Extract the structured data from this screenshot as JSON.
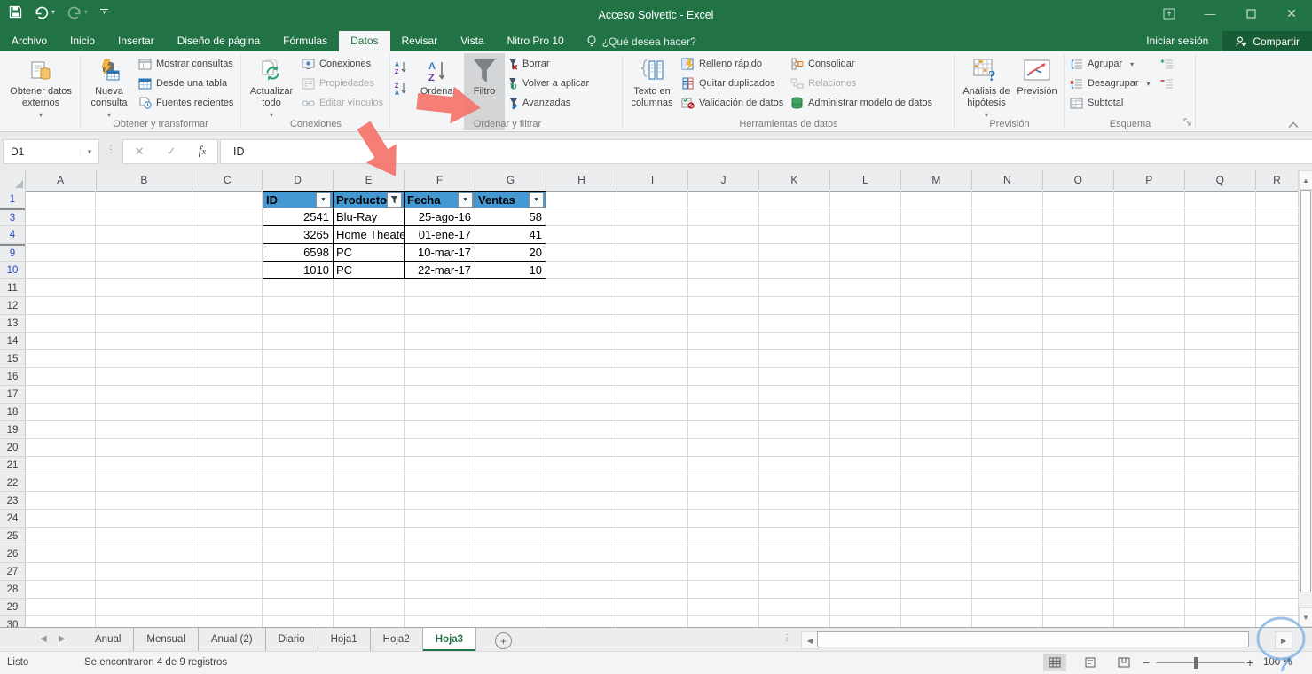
{
  "colors": {
    "brand_green": "#217346",
    "table_header_blue": "#4599D2",
    "arrow_red": "#F4736B",
    "filtered_row_number_blue": "#2B48C8"
  },
  "titlebar": {
    "title": "Acceso Solvetic - Excel"
  },
  "menubar": {
    "tabs": [
      {
        "label": "Archivo"
      },
      {
        "label": "Inicio"
      },
      {
        "label": "Insertar"
      },
      {
        "label": "Diseño de página"
      },
      {
        "label": "Fórmulas"
      },
      {
        "label": "Datos",
        "active": true
      },
      {
        "label": "Revisar"
      },
      {
        "label": "Vista"
      },
      {
        "label": "Nitro Pro 10"
      }
    ],
    "tellme": "¿Qué desea hacer?",
    "signin": "Iniciar sesión",
    "share": "Compartir"
  },
  "ribbon": {
    "get_external": "Obtener datos externos",
    "new_query": "Nueva consulta",
    "show_queries": "Mostrar consultas",
    "from_table": "Desde una tabla",
    "recent_sources": "Fuentes recientes",
    "group_get_transform": "Obtener y transformar",
    "refresh_all": "Actualizar todo",
    "connections": "Conexiones",
    "properties": "Propiedades",
    "edit_links": "Editar vínculos",
    "group_connections": "Conexiones",
    "sort": "Ordenar",
    "filter": "Filtro",
    "clear": "Borrar",
    "reapply": "Volver a aplicar",
    "advanced": "Avanzadas",
    "group_sort_filter": "Ordenar y filtrar",
    "text_to_columns": "Texto en columnas",
    "flash_fill": "Relleno rápido",
    "remove_duplicates": "Quitar duplicados",
    "data_validation": "Validación de datos",
    "consolidate": "Consolidar",
    "relationships": "Relaciones",
    "manage_data_model": "Administrar modelo de datos",
    "group_data_tools": "Herramientas de datos",
    "what_if": "Análisis de hipótesis",
    "forecast_sheet": "Previsión",
    "group_forecast": "Previsión",
    "outline_group": "Agrupar",
    "outline_ungroup": "Desagrupar",
    "outline_subtotal": "Subtotal",
    "group_outline": "Esquema"
  },
  "formula_bar": {
    "name_box": "D1",
    "content": "ID"
  },
  "grid": {
    "columns": [
      "A",
      "B",
      "C",
      "D",
      "E",
      "F",
      "G",
      "H",
      "I",
      "J",
      "K",
      "L",
      "M",
      "N",
      "O",
      "P",
      "Q",
      "R"
    ],
    "rows": [
      "1",
      "3",
      "4",
      "9",
      "10",
      "11",
      "12",
      "13",
      "14",
      "15",
      "16",
      "17",
      "18",
      "19",
      "20",
      "21",
      "22",
      "23",
      "24",
      "25",
      "26",
      "27",
      "28",
      "29",
      "30"
    ],
    "filtered_rows": [
      "1",
      "3",
      "4",
      "9",
      "10"
    ],
    "hidden_gap_before": [
      "3",
      "9"
    ]
  },
  "table": {
    "headers": [
      {
        "label": "ID",
        "filter": "dropdown"
      },
      {
        "label": "Producto",
        "filter": "applied"
      },
      {
        "label": "Fecha",
        "filter": "dropdown"
      },
      {
        "label": "Ventas",
        "filter": "dropdown"
      }
    ],
    "aligns": [
      "right",
      "left",
      "right",
      "right"
    ],
    "rows": [
      [
        "2541",
        "Blu-Ray",
        "25-ago-16",
        "58"
      ],
      [
        "3265",
        "Home Theater",
        "01-ene-17",
        "41"
      ],
      [
        "6598",
        "PC",
        "10-mar-17",
        "20"
      ],
      [
        "1010",
        "PC",
        "22-mar-17",
        "10"
      ]
    ]
  },
  "sheetbar": {
    "tabs": [
      {
        "label": "Anual"
      },
      {
        "label": "Mensual"
      },
      {
        "label": "Anual (2)"
      },
      {
        "label": "Diario"
      },
      {
        "label": "Hoja1"
      },
      {
        "label": "Hoja2"
      },
      {
        "label": "Hoja3",
        "active": true
      }
    ],
    "new_sheet": "+"
  },
  "statusbar": {
    "mode": "Listo",
    "records": "Se encontraron 4 de 9 registros",
    "zoom": "100 %"
  }
}
